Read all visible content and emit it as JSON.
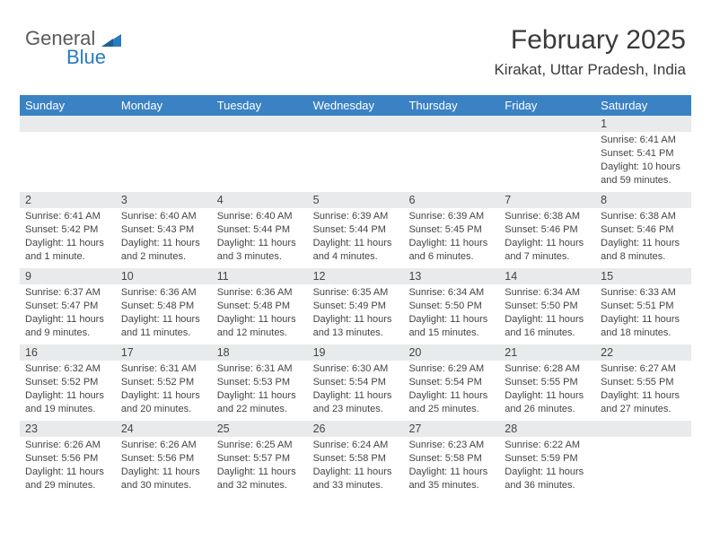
{
  "logo": {
    "text1": "General",
    "text2": "Blue"
  },
  "header": {
    "month": "February 2025",
    "location": "Kirakat, Uttar Pradesh, India"
  },
  "colors": {
    "header_bg": "#3b82c4",
    "header_fg": "#ffffff",
    "daynum_bg": "#e9eaeb",
    "logo_blue": "#2b7bbf"
  },
  "dayNames": [
    "Sunday",
    "Monday",
    "Tuesday",
    "Wednesday",
    "Thursday",
    "Friday",
    "Saturday"
  ],
  "weeks": [
    [
      {
        "n": "",
        "t": ""
      },
      {
        "n": "",
        "t": ""
      },
      {
        "n": "",
        "t": ""
      },
      {
        "n": "",
        "t": ""
      },
      {
        "n": "",
        "t": ""
      },
      {
        "n": "",
        "t": ""
      },
      {
        "n": "1",
        "t": "Sunrise: 6:41 AM\nSunset: 5:41 PM\nDaylight: 10 hours and 59 minutes."
      }
    ],
    [
      {
        "n": "2",
        "t": "Sunrise: 6:41 AM\nSunset: 5:42 PM\nDaylight: 11 hours and 1 minute."
      },
      {
        "n": "3",
        "t": "Sunrise: 6:40 AM\nSunset: 5:43 PM\nDaylight: 11 hours and 2 minutes."
      },
      {
        "n": "4",
        "t": "Sunrise: 6:40 AM\nSunset: 5:44 PM\nDaylight: 11 hours and 3 minutes."
      },
      {
        "n": "5",
        "t": "Sunrise: 6:39 AM\nSunset: 5:44 PM\nDaylight: 11 hours and 4 minutes."
      },
      {
        "n": "6",
        "t": "Sunrise: 6:39 AM\nSunset: 5:45 PM\nDaylight: 11 hours and 6 minutes."
      },
      {
        "n": "7",
        "t": "Sunrise: 6:38 AM\nSunset: 5:46 PM\nDaylight: 11 hours and 7 minutes."
      },
      {
        "n": "8",
        "t": "Sunrise: 6:38 AM\nSunset: 5:46 PM\nDaylight: 11 hours and 8 minutes."
      }
    ],
    [
      {
        "n": "9",
        "t": "Sunrise: 6:37 AM\nSunset: 5:47 PM\nDaylight: 11 hours and 9 minutes."
      },
      {
        "n": "10",
        "t": "Sunrise: 6:36 AM\nSunset: 5:48 PM\nDaylight: 11 hours and 11 minutes."
      },
      {
        "n": "11",
        "t": "Sunrise: 6:36 AM\nSunset: 5:48 PM\nDaylight: 11 hours and 12 minutes."
      },
      {
        "n": "12",
        "t": "Sunrise: 6:35 AM\nSunset: 5:49 PM\nDaylight: 11 hours and 13 minutes."
      },
      {
        "n": "13",
        "t": "Sunrise: 6:34 AM\nSunset: 5:50 PM\nDaylight: 11 hours and 15 minutes."
      },
      {
        "n": "14",
        "t": "Sunrise: 6:34 AM\nSunset: 5:50 PM\nDaylight: 11 hours and 16 minutes."
      },
      {
        "n": "15",
        "t": "Sunrise: 6:33 AM\nSunset: 5:51 PM\nDaylight: 11 hours and 18 minutes."
      }
    ],
    [
      {
        "n": "16",
        "t": "Sunrise: 6:32 AM\nSunset: 5:52 PM\nDaylight: 11 hours and 19 minutes."
      },
      {
        "n": "17",
        "t": "Sunrise: 6:31 AM\nSunset: 5:52 PM\nDaylight: 11 hours and 20 minutes."
      },
      {
        "n": "18",
        "t": "Sunrise: 6:31 AM\nSunset: 5:53 PM\nDaylight: 11 hours and 22 minutes."
      },
      {
        "n": "19",
        "t": "Sunrise: 6:30 AM\nSunset: 5:54 PM\nDaylight: 11 hours and 23 minutes."
      },
      {
        "n": "20",
        "t": "Sunrise: 6:29 AM\nSunset: 5:54 PM\nDaylight: 11 hours and 25 minutes."
      },
      {
        "n": "21",
        "t": "Sunrise: 6:28 AM\nSunset: 5:55 PM\nDaylight: 11 hours and 26 minutes."
      },
      {
        "n": "22",
        "t": "Sunrise: 6:27 AM\nSunset: 5:55 PM\nDaylight: 11 hours and 27 minutes."
      }
    ],
    [
      {
        "n": "23",
        "t": "Sunrise: 6:26 AM\nSunset: 5:56 PM\nDaylight: 11 hours and 29 minutes."
      },
      {
        "n": "24",
        "t": "Sunrise: 6:26 AM\nSunset: 5:56 PM\nDaylight: 11 hours and 30 minutes."
      },
      {
        "n": "25",
        "t": "Sunrise: 6:25 AM\nSunset: 5:57 PM\nDaylight: 11 hours and 32 minutes."
      },
      {
        "n": "26",
        "t": "Sunrise: 6:24 AM\nSunset: 5:58 PM\nDaylight: 11 hours and 33 minutes."
      },
      {
        "n": "27",
        "t": "Sunrise: 6:23 AM\nSunset: 5:58 PM\nDaylight: 11 hours and 35 minutes."
      },
      {
        "n": "28",
        "t": "Sunrise: 6:22 AM\nSunset: 5:59 PM\nDaylight: 11 hours and 36 minutes."
      },
      {
        "n": "",
        "t": ""
      }
    ]
  ]
}
